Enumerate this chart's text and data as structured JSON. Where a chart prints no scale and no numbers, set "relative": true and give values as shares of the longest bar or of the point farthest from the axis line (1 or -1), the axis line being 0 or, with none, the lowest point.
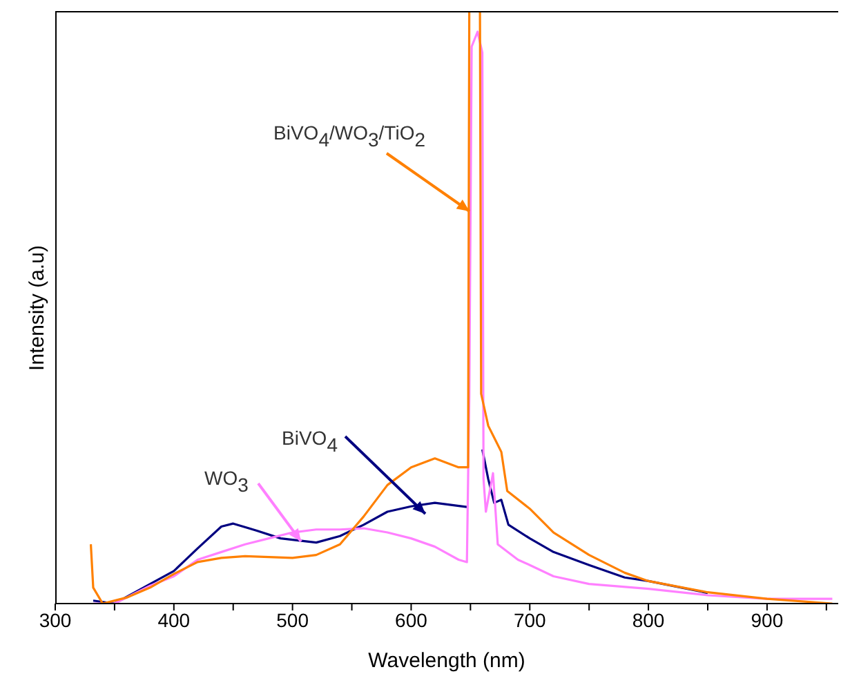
{
  "chart_data": {
    "type": "line",
    "xlabel": "Wavelength (nm)",
    "ylabel": "Intensity (a.u)",
    "relative": true,
    "xlim": [
      300,
      960
    ],
    "xticks": [
      300,
      {
        "value": 350,
        "label": null
      },
      400,
      {
        "value": 450,
        "label": null
      },
      500,
      {
        "value": 550,
        "label": null
      },
      600,
      {
        "value": 650,
        "label": null
      },
      700,
      {
        "value": 750,
        "label": null
      },
      800,
      {
        "value": 850,
        "label": null
      },
      900,
      {
        "value": 950,
        "label": null
      }
    ],
    "series": [
      {
        "name": "BiVO$_{4}$",
        "color": "#000080",
        "x": [
          332,
          350,
          380,
          400,
          420,
          440,
          450,
          470,
          490,
          520,
          540,
          560,
          580,
          600,
          620,
          647,
          649,
          658,
          660,
          665,
          670,
          676,
          682,
          700,
          720,
          750,
          780,
          800,
          850
        ],
        "values": [
          0.005,
          0,
          0.033,
          0.055,
          0.093,
          0.13,
          0.135,
          0.123,
          0.11,
          0.103,
          0.114,
          0.133,
          0.155,
          0.164,
          0.17,
          0.163,
          null,
          null,
          0.26,
          0.21,
          0.17,
          0.175,
          0.133,
          0.11,
          0.087,
          0.065,
          0.044,
          0.038,
          0.018
        ]
      },
      {
        "name": "WO$_{3}$",
        "color": "#ff80ff",
        "x": [
          332,
          350,
          380,
          400,
          420,
          440,
          460,
          480,
          500,
          520,
          540,
          560,
          580,
          600,
          620,
          640,
          647,
          649,
          651,
          656,
          660,
          661,
          663,
          669,
          673,
          690,
          700,
          720,
          750,
          800,
          850,
          900,
          955
        ],
        "values": [
          0,
          0,
          0.03,
          0.046,
          0.074,
          0.087,
          0.1,
          0.11,
          0.12,
          0.125,
          0.125,
          0.127,
          0.12,
          0.11,
          0.096,
          0.074,
          0.07,
          0.35,
          0.94,
          0.965,
          0.93,
          0.21,
          0.155,
          0.22,
          0.1,
          0.074,
          0.065,
          0.046,
          0.033,
          0.025,
          0.014,
          0.008,
          0.008
        ]
      },
      {
        "name": "BiVO$_{4}$/WO$_{3}$/TiO$_{2}$",
        "color": "#ff8000",
        "x": [
          330,
          332,
          340,
          360,
          380,
          400,
          420,
          440,
          460,
          500,
          520,
          540,
          560,
          580,
          600,
          620,
          640,
          648,
          649,
          658,
          659,
          665,
          670,
          676,
          681,
          700,
          720,
          750,
          780,
          800,
          850,
          900,
          955
        ],
        "values": [
          0.1,
          0.027,
          0,
          0.01,
          0.027,
          0.05,
          0.07,
          0.077,
          0.08,
          0.077,
          0.082,
          0.1,
          0.147,
          0.2,
          0.23,
          0.245,
          0.23,
          0.23,
          1,
          1,
          0.354,
          0.3,
          0.28,
          0.256,
          0.19,
          0.16,
          0.12,
          0.082,
          0.052,
          0.038,
          0.019,
          0.008,
          0
        ]
      }
    ]
  }
}
